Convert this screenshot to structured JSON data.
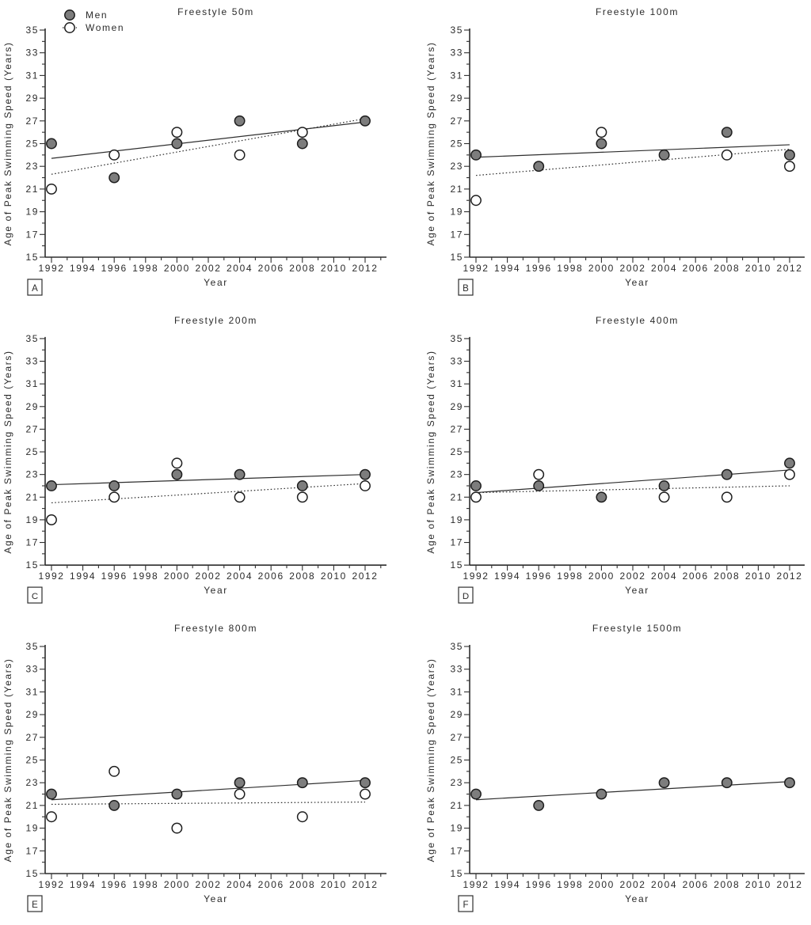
{
  "figure": {
    "background": "#ffffff",
    "text_color": "#2b2b2b",
    "axis_color": "#2e2e2e",
    "legend": {
      "men_label": "Men",
      "women_label": "Women"
    },
    "marker_colors": {
      "men_fill": "#7d7d7d",
      "women_fill": "#ffffff",
      "stroke": "#1d1d1d"
    },
    "icons": {
      "men_marker": "filled-circle-icon",
      "women_marker": "open-circle-icon"
    }
  },
  "chart_data": [
    {
      "type": "scatter",
      "panel_label": "A",
      "title": "Freestyle 50m",
      "xlabel": "Year",
      "ylabel": "Age of Peak Swimming Speed (Years)",
      "xlim": [
        1992,
        2013.5
      ],
      "ylim": [
        15,
        35
      ],
      "x_ticks": [
        1992,
        1994,
        1996,
        1998,
        2000,
        2002,
        2004,
        2006,
        2008,
        2010,
        2012
      ],
      "y_ticks": [
        15,
        17,
        19,
        21,
        23,
        25,
        27,
        29,
        31,
        33,
        35
      ],
      "legend_visible": true,
      "series": [
        {
          "name": "Men",
          "marker": "filled-circle",
          "trend_style": "solid",
          "points": [
            [
              1992,
              25
            ],
            [
              1996,
              22
            ],
            [
              2000,
              25
            ],
            [
              2004,
              27
            ],
            [
              2008,
              25
            ],
            [
              2012,
              27
            ]
          ],
          "trend": [
            [
              1992,
              23.7
            ],
            [
              2012,
              26.9
            ]
          ]
        },
        {
          "name": "Women",
          "marker": "open-circle",
          "trend_style": "dotted",
          "points": [
            [
              1992,
              21
            ],
            [
              1996,
              24
            ],
            [
              2000,
              26
            ],
            [
              2004,
              24
            ],
            [
              2008,
              26
            ]
          ],
          "trend": [
            [
              1992,
              22.3
            ],
            [
              2012,
              27.2
            ]
          ]
        }
      ]
    },
    {
      "type": "scatter",
      "panel_label": "B",
      "title": "Freestyle 100m",
      "xlabel": "Year",
      "ylabel": "Age of Peak Swimming Speed (Years)",
      "xlim": [
        1992,
        2013.5
      ],
      "ylim": [
        15,
        35
      ],
      "x_ticks": [
        1992,
        1994,
        1996,
        1998,
        2000,
        2002,
        2004,
        2006,
        2008,
        2010,
        2012
      ],
      "y_ticks": [
        15,
        17,
        19,
        21,
        23,
        25,
        27,
        29,
        31,
        33,
        35
      ],
      "legend_visible": false,
      "series": [
        {
          "name": "Men",
          "marker": "filled-circle",
          "trend_style": "solid",
          "points": [
            [
              1992,
              24
            ],
            [
              1996,
              23
            ],
            [
              2000,
              25
            ],
            [
              2004,
              24
            ],
            [
              2008,
              26
            ],
            [
              2012,
              24
            ]
          ],
          "trend": [
            [
              1992,
              23.8
            ],
            [
              2012,
              24.9
            ]
          ]
        },
        {
          "name": "Women",
          "marker": "open-circle",
          "trend_style": "dotted",
          "points": [
            [
              1992,
              20
            ],
            [
              2000,
              26
            ],
            [
              2008,
              24
            ],
            [
              2012,
              23
            ]
          ],
          "trend": [
            [
              1992,
              22.2
            ],
            [
              2012,
              24.5
            ]
          ]
        }
      ]
    },
    {
      "type": "scatter",
      "panel_label": "C",
      "title": "Freestyle 200m",
      "xlabel": "Year",
      "ylabel": "Age of Peak Swimming Speed (Years)",
      "xlim": [
        1992,
        2013.5
      ],
      "ylim": [
        15,
        35
      ],
      "x_ticks": [
        1992,
        1994,
        1996,
        1998,
        2000,
        2002,
        2004,
        2006,
        2008,
        2010,
        2012
      ],
      "y_ticks": [
        15,
        17,
        19,
        21,
        23,
        25,
        27,
        29,
        31,
        33,
        35
      ],
      "legend_visible": false,
      "series": [
        {
          "name": "Men",
          "marker": "filled-circle",
          "trend_style": "solid",
          "points": [
            [
              1992,
              22
            ],
            [
              1996,
              22
            ],
            [
              2000,
              23
            ],
            [
              2004,
              23
            ],
            [
              2008,
              22
            ],
            [
              2012,
              23
            ]
          ],
          "trend": [
            [
              1992,
              22.1
            ],
            [
              2012,
              23.0
            ]
          ]
        },
        {
          "name": "Women",
          "marker": "open-circle",
          "trend_style": "dotted",
          "points": [
            [
              1992,
              19
            ],
            [
              1996,
              21
            ],
            [
              2000,
              24
            ],
            [
              2004,
              21
            ],
            [
              2008,
              21
            ],
            [
              2012,
              22
            ]
          ],
          "trend": [
            [
              1992,
              20.5
            ],
            [
              2012,
              22.2
            ]
          ]
        }
      ]
    },
    {
      "type": "scatter",
      "panel_label": "D",
      "title": "Freestyle 400m",
      "xlabel": "Year",
      "ylabel": "Age of Peak Swimming Speed (Years)",
      "xlim": [
        1992,
        2013.5
      ],
      "ylim": [
        15,
        35
      ],
      "x_ticks": [
        1992,
        1994,
        1996,
        1998,
        2000,
        2002,
        2004,
        2006,
        2008,
        2010,
        2012
      ],
      "y_ticks": [
        15,
        17,
        19,
        21,
        23,
        25,
        27,
        29,
        31,
        33,
        35
      ],
      "legend_visible": false,
      "series": [
        {
          "name": "Men",
          "marker": "filled-circle",
          "trend_style": "solid",
          "points": [
            [
              1992,
              22
            ],
            [
              1996,
              22
            ],
            [
              2000,
              21
            ],
            [
              2004,
              22
            ],
            [
              2008,
              23
            ],
            [
              2012,
              24
            ]
          ],
          "trend": [
            [
              1992,
              21.4
            ],
            [
              2012,
              23.4
            ]
          ]
        },
        {
          "name": "Women",
          "marker": "open-circle",
          "trend_style": "dotted",
          "points": [
            [
              1992,
              21
            ],
            [
              1996,
              23
            ],
            [
              2004,
              21
            ],
            [
              2008,
              21
            ],
            [
              2012,
              23
            ]
          ],
          "trend": [
            [
              1992,
              21.4
            ],
            [
              2012,
              22.0
            ]
          ]
        }
      ]
    },
    {
      "type": "scatter",
      "panel_label": "E",
      "title": "Freestyle 800m",
      "xlabel": "Year",
      "ylabel": "Age of Peak Swimming Speed (Years)",
      "xlim": [
        1992,
        2013.5
      ],
      "ylim": [
        15,
        35
      ],
      "x_ticks": [
        1992,
        1994,
        1996,
        1998,
        2000,
        2002,
        2004,
        2006,
        2008,
        2010,
        2012
      ],
      "y_ticks": [
        15,
        17,
        19,
        21,
        23,
        25,
        27,
        29,
        31,
        33,
        35
      ],
      "legend_visible": false,
      "series": [
        {
          "name": "Men",
          "marker": "filled-circle",
          "trend_style": "solid",
          "points": [
            [
              1992,
              22
            ],
            [
              1996,
              21
            ],
            [
              2000,
              22
            ],
            [
              2004,
              23
            ],
            [
              2008,
              23
            ],
            [
              2012,
              23
            ]
          ],
          "trend": [
            [
              1992,
              21.5
            ],
            [
              2012,
              23.2
            ]
          ]
        },
        {
          "name": "Women",
          "marker": "open-circle",
          "trend_style": "dotted",
          "points": [
            [
              1992,
              20
            ],
            [
              1996,
              24
            ],
            [
              2000,
              19
            ],
            [
              2004,
              22
            ],
            [
              2008,
              20
            ],
            [
              2012,
              22
            ]
          ],
          "trend": [
            [
              1992,
              21.1
            ],
            [
              2012,
              21.3
            ]
          ]
        }
      ]
    },
    {
      "type": "scatter",
      "panel_label": "F",
      "title": "Freestyle 1500m",
      "xlabel": "Year",
      "ylabel": "Age of Peak Swimming Speed (Years)",
      "xlim": [
        1992,
        2013.5
      ],
      "ylim": [
        15,
        35
      ],
      "x_ticks": [
        1992,
        1994,
        1996,
        1998,
        2000,
        2002,
        2004,
        2006,
        2008,
        2010,
        2012
      ],
      "y_ticks": [
        15,
        17,
        19,
        21,
        23,
        25,
        27,
        29,
        31,
        33,
        35
      ],
      "legend_visible": false,
      "series": [
        {
          "name": "Men",
          "marker": "filled-circle",
          "trend_style": "solid",
          "points": [
            [
              1992,
              22
            ],
            [
              1996,
              21
            ],
            [
              2000,
              22
            ],
            [
              2004,
              23
            ],
            [
              2008,
              23
            ],
            [
              2012,
              23
            ]
          ],
          "trend": [
            [
              1992,
              21.5
            ],
            [
              2012,
              23.1
            ]
          ]
        }
      ]
    }
  ]
}
